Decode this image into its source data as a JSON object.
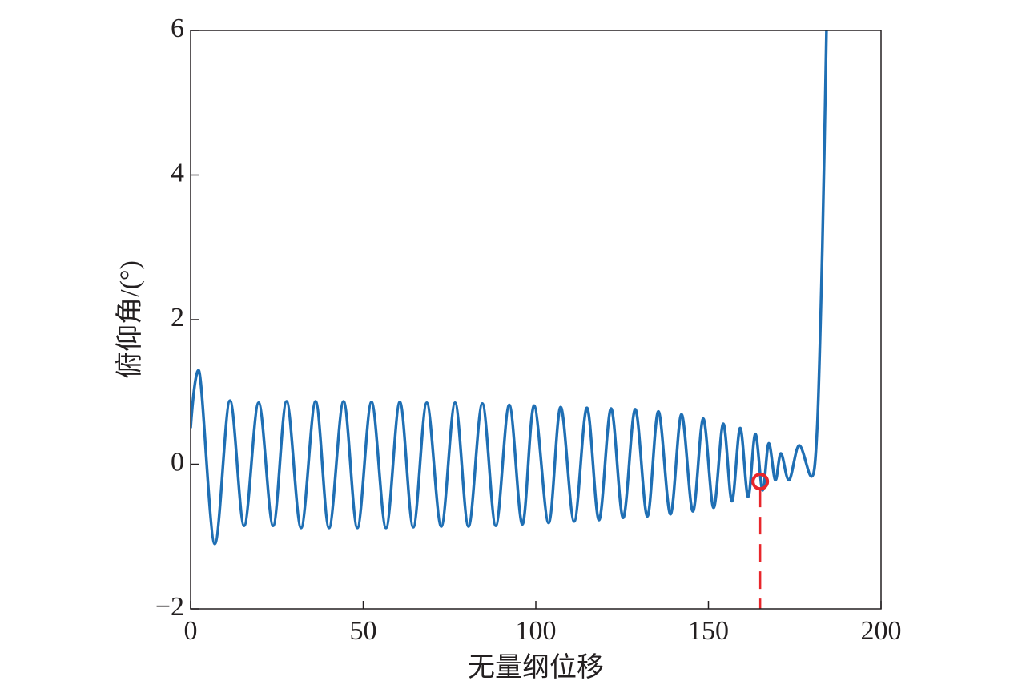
{
  "chart_data": {
    "type": "line",
    "xlabel": "无量纲位移",
    "ylabel": "俯仰角/(°)",
    "xlim": [
      0,
      200
    ],
    "ylim": [
      -2,
      6
    ],
    "xticks": [
      0,
      50,
      100,
      150,
      200
    ],
    "yticks": [
      {
        "value": -2,
        "label": "−2"
      },
      0,
      2,
      4,
      6
    ],
    "series": [
      {
        "color": "#1f6fb4",
        "x": [
          0,
          2.3,
          7,
          11.4,
          15.5,
          19.7,
          23.9,
          27.8,
          32,
          36.2,
          40.1,
          44.3,
          48.3,
          52.4,
          56.6,
          60.6,
          64.5,
          68.4,
          72.6,
          76.6,
          80.5,
          84.5,
          88.4,
          92.3,
          96.1,
          99.5,
          103.7,
          107.2,
          111.1,
          114.8,
          118.3,
          121.8,
          125.3,
          128.8,
          132.3,
          135.5,
          139,
          142.2,
          145.5,
          148.5,
          151.5,
          154.3,
          156.8,
          159.2,
          161.5,
          163.6,
          165.7,
          167.5,
          169.4,
          171,
          173.3,
          176.3,
          179.8,
          181.5,
          183,
          184.2
        ],
        "values": [
          0.5,
          1.3,
          -1.1,
          0.88,
          -0.85,
          0.85,
          -0.85,
          0.87,
          -0.88,
          0.87,
          -0.88,
          0.87,
          -0.88,
          0.86,
          -0.88,
          0.86,
          -0.87,
          0.85,
          -0.86,
          0.85,
          -0.86,
          0.84,
          -0.85,
          0.82,
          -0.83,
          0.81,
          -0.81,
          0.79,
          -0.79,
          0.78,
          -0.77,
          0.77,
          -0.74,
          0.76,
          -0.72,
          0.73,
          -0.69,
          0.69,
          -0.65,
          0.63,
          -0.6,
          0.56,
          -0.51,
          0.5,
          -0.45,
          0.42,
          -0.36,
          0.29,
          -0.22,
          0.15,
          -0.22,
          0.26,
          -0.17,
          0.5,
          3,
          6
        ]
      }
    ],
    "marker": {
      "x": 165,
      "y": -0.24,
      "color": "#e8262b"
    }
  }
}
